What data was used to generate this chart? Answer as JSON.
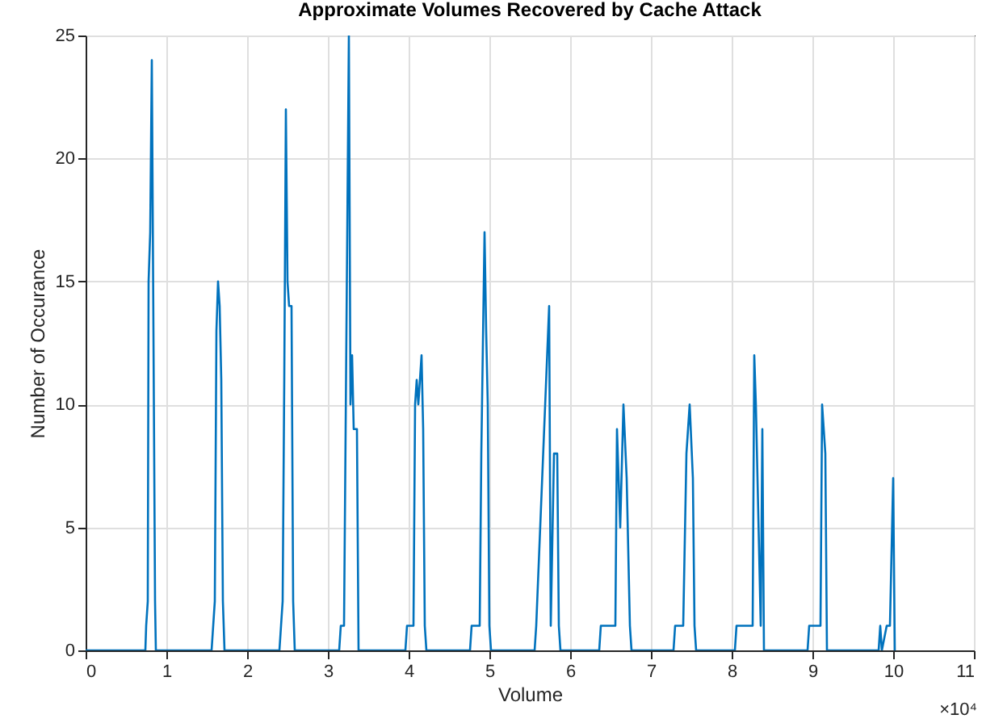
{
  "chart_data": {
    "type": "line",
    "title": "Approximate Volumes Recovered by Cache Attack",
    "xlabel": "Volume",
    "ylabel": "Number of Occurance",
    "x": [
      0,
      0.74,
      0.75,
      0.77,
      0.78,
      0.8,
      0.82,
      0.84,
      0.86,
      0.87,
      1.56,
      1.58,
      1.6,
      1.62,
      1.64,
      1.66,
      1.68,
      1.7,
      1.72,
      2.4,
      2.42,
      2.44,
      2.46,
      2.48,
      2.5,
      2.52,
      2.55,
      2.57,
      2.59,
      3.14,
      3.16,
      3.2,
      3.22,
      3.26,
      3.28,
      3.3,
      3.32,
      3.36,
      3.38,
      3.96,
      3.98,
      4.06,
      4.08,
      4.1,
      4.12,
      4.16,
      4.18,
      4.2,
      4.22,
      4.76,
      4.78,
      4.88,
      4.9,
      4.94,
      4.96,
      4.98,
      5,
      5.02,
      5.56,
      5.58,
      5.74,
      5.76,
      5.8,
      5.84,
      5.86,
      5.88,
      6.36,
      6.38,
      6.56,
      6.58,
      6.62,
      6.66,
      6.7,
      6.74,
      6.76,
      7.28,
      7.3,
      7.4,
      7.44,
      7.48,
      7.52,
      7.54,
      7.56,
      8.04,
      8.06,
      8.16,
      8.2,
      8.26,
      8.28,
      8.3,
      8.36,
      8.38,
      8.4,
      8.94,
      8.96,
      9.04,
      9.1,
      9.12,
      9.16,
      9.18,
      9.82,
      9.84,
      9.86,
      9.92,
      9.96,
      10,
      10.02
    ],
    "series": [
      {
        "color": "#0072bd",
        "values": [
          0,
          0,
          1,
          2,
          15,
          17,
          24,
          13,
          2,
          0,
          0,
          1,
          2,
          13,
          15,
          14,
          11,
          2,
          0,
          0,
          1,
          2,
          11,
          22,
          15,
          14,
          14,
          2,
          0,
          0,
          1,
          1,
          9,
          25,
          10,
          12,
          9,
          9,
          0,
          0,
          1,
          1,
          10,
          11,
          10,
          12,
          9,
          1,
          0,
          0,
          1,
          1,
          8,
          17,
          13,
          10,
          1,
          0,
          0,
          1,
          14,
          1,
          8,
          8,
          1,
          0,
          0,
          1,
          1,
          9,
          5,
          10,
          7,
          1,
          0,
          0,
          1,
          1,
          8,
          10,
          7,
          1,
          0,
          0,
          1,
          1,
          1,
          1,
          12,
          10,
          1,
          9,
          0,
          0,
          1,
          1,
          1,
          10,
          8,
          0,
          0,
          1,
          0,
          1,
          1,
          7,
          0
        ]
      }
    ],
    "xlim": [
      0,
      11
    ],
    "xticks": [
      0,
      1,
      2,
      3,
      4,
      5,
      6,
      7,
      8,
      9,
      10,
      11
    ],
    "ylim": [
      0,
      25
    ],
    "yticks": [
      0,
      5,
      10,
      15,
      20,
      25
    ],
    "grid": true,
    "marker": "none",
    "line_style": "solid",
    "annotations": [
      "×10⁴"
    ]
  }
}
